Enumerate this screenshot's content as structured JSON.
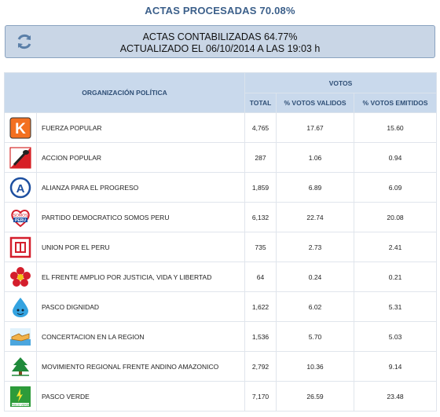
{
  "header": {
    "title": "ACTAS PROCESADAS 70.08%",
    "status_line1": "ACTAS CONTABILIZADAS 64.77%",
    "status_line2": "ACTUALIZADO EL 06/10/2014 A LAS 19:03 h",
    "refresh_icon": "refresh-icon"
  },
  "table": {
    "col_org": "ORGANIZACIÓN POLÍTICA",
    "col_votos": "VOTOS",
    "col_total": "TOTAL",
    "col_validos": "% VOTOS VALIDOS",
    "col_emitidos": "% VOTOS EMITIDOS",
    "rows": [
      {
        "name": "FUERZA POPULAR",
        "total": "4,765",
        "validos": "17.67",
        "emitidos": "15.60",
        "logo": "k-logo"
      },
      {
        "name": "ACCION POPULAR",
        "total": "287",
        "validos": "1.06",
        "emitidos": "0.94",
        "logo": "shovel-logo"
      },
      {
        "name": "ALIANZA PARA EL PROGRESO",
        "total": "1,859",
        "validos": "6.89",
        "emitidos": "6.09",
        "logo": "a-circle-logo"
      },
      {
        "name": "PARTIDO DEMOCRATICO SOMOS PERU",
        "total": "6,132",
        "validos": "22.74",
        "emitidos": "20.08",
        "logo": "somos-peru-logo"
      },
      {
        "name": "UNION POR EL PERU",
        "total": "735",
        "validos": "2.73",
        "emitidos": "2.41",
        "logo": "upp-logo"
      },
      {
        "name": "EL FRENTE AMPLIO POR JUSTICIA, VIDA Y LIBERTAD",
        "total": "64",
        "validos": "0.24",
        "emitidos": "0.21",
        "logo": "flower-logo"
      },
      {
        "name": "PASCO DIGNIDAD",
        "total": "1,622",
        "validos": "6.02",
        "emitidos": "5.31",
        "logo": "water-drop-logo"
      },
      {
        "name": "CONCERTACION EN LA REGION",
        "total": "1,536",
        "validos": "5.70",
        "emitidos": "5.03",
        "logo": "handshake-logo"
      },
      {
        "name": "MOVIMIENTO REGIONAL FRENTE ANDINO AMAZONICO",
        "total": "2,792",
        "validos": "10.36",
        "emitidos": "9.14",
        "logo": "tree-logo"
      },
      {
        "name": "PASCO VERDE",
        "total": "7,170",
        "validos": "26.59",
        "emitidos": "23.48",
        "logo": "pasco-verde-logo"
      }
    ]
  }
}
